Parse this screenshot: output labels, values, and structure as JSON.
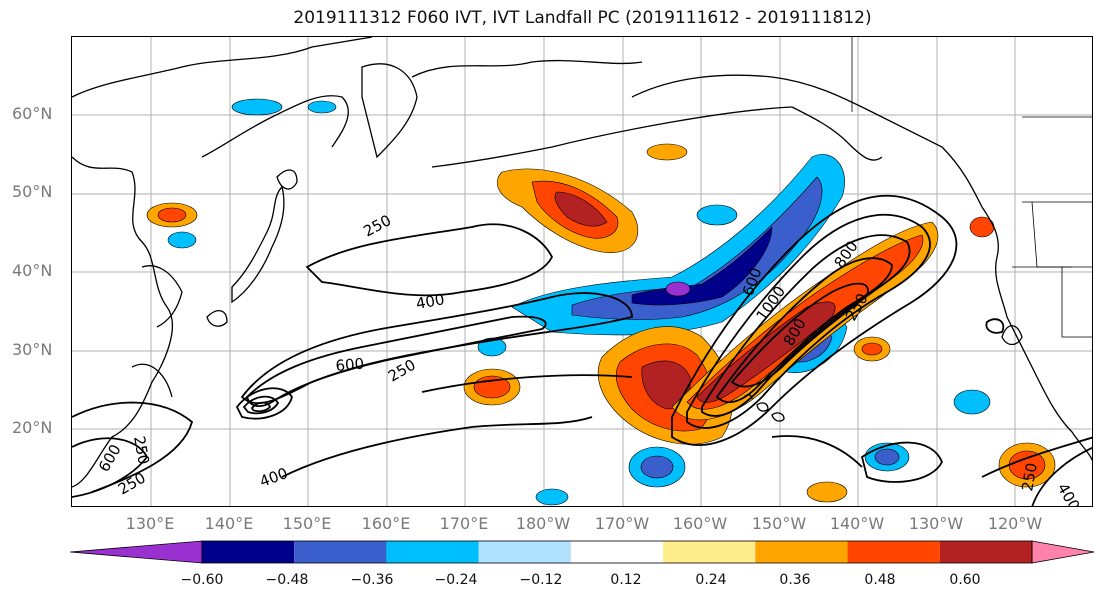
{
  "title": "2019111312 F060 IVT, IVT Landfall PC (2019111612 - 2019111812)",
  "map": {
    "lat_labels": [
      "60°N",
      "50°N",
      "40°N",
      "30°N",
      "20°N"
    ],
    "lon_labels": [
      "130°E",
      "140°E",
      "150°E",
      "160°E",
      "170°E",
      "180°W",
      "170°W",
      "160°W",
      "150°W",
      "140°W",
      "130°W",
      "120°W"
    ],
    "contour_labels": [
      "250",
      "400",
      "600",
      "250",
      "250",
      "400",
      "600",
      "250",
      "600",
      "800",
      "1000",
      "800",
      "250",
      "400",
      "250"
    ]
  },
  "colorbar": {
    "ticks": [
      "−0.60",
      "−0.48",
      "−0.36",
      "−0.24",
      "−0.12",
      "0.12",
      "0.24",
      "0.36",
      "0.48",
      "0.60"
    ],
    "colors": [
      "#9b30d0",
      "#00008b",
      "#3a5fcd",
      "#00bfff",
      "#b0e2ff",
      "#ffffff",
      "#ffec8b",
      "#ffa500",
      "#ff4500",
      "#b22222",
      "#ff82ab"
    ]
  },
  "colors": {
    "coast": "#000000",
    "grid": "#b0b0b0",
    "contour": "#000000"
  }
}
